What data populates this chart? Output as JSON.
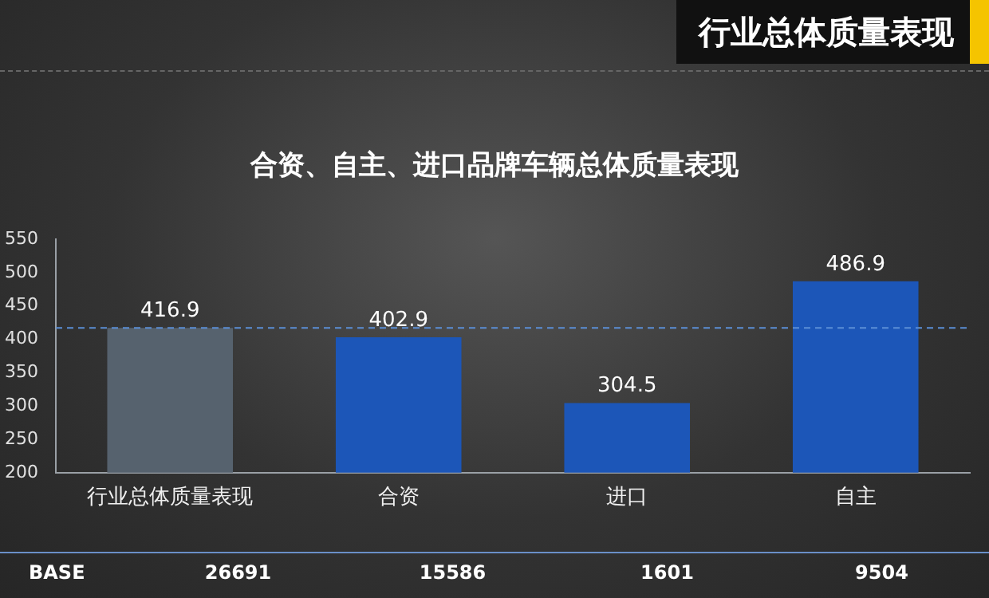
{
  "chart_data": {
    "type": "bar",
    "title": "合资、自主、进口品牌车辆总体质量表现",
    "categories": [
      "行业总体质量表现",
      "合资",
      "进口",
      "自主"
    ],
    "values": [
      416.9,
      402.9,
      304.5,
      486.9
    ],
    "colors": [
      "#56626e",
      "#1c56b8",
      "#1c56b8",
      "#1c56b8"
    ],
    "ylim": [
      200,
      550
    ],
    "yticks": [
      200,
      250,
      300,
      350,
      400,
      450,
      500,
      550
    ],
    "grid": false,
    "legend": false,
    "data_labels": true,
    "ref_lines": [
      {
        "axis": "y",
        "value": 416.9,
        "color": "#5b8fd6",
        "line_style": "dashed"
      }
    ],
    "annotations": [
      "行业总体质量表现",
      "BASE",
      "26691",
      "15586",
      "1601",
      "9504"
    ]
  }
}
